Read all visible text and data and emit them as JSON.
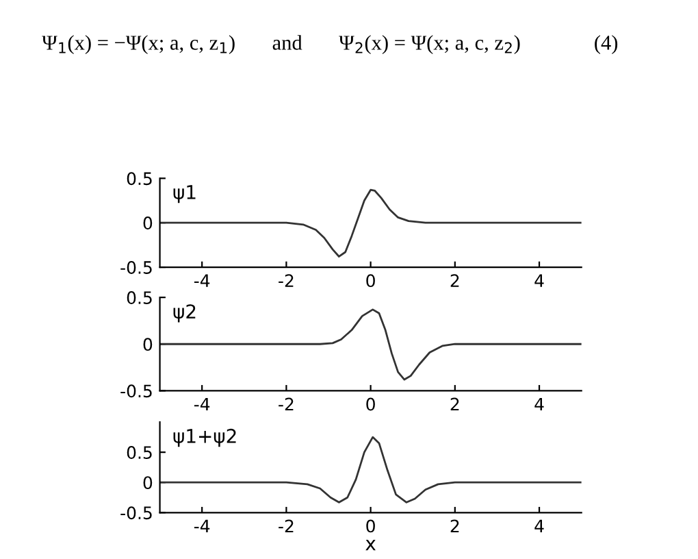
{
  "chart_data": [
    {
      "type": "line",
      "annotations": [
        "Ψ$_{1}$(x) = −Ψ(x; a, c, z$_{1}$)       and       Ψ$_{2}$(x) = Ψ(x; a, c, z$_{2}$)              (4)",
        "ψ1"
      ],
      "xlim": [
        -5,
        5
      ],
      "xticks": [
        -4,
        -2,
        0,
        2,
        4
      ],
      "ylim": [
        -0.5,
        0.5
      ],
      "yticks": [
        -0.5,
        0,
        0.5
      ],
      "grid": false,
      "series": [
        {
          "color": "#333333",
          "x": [
            -5,
            -2,
            -1.6,
            -1.3,
            -1.1,
            -0.9,
            -0.75,
            -0.6,
            -0.45,
            -0.3,
            -0.15,
            0,
            0.1,
            0.25,
            0.45,
            0.65,
            0.9,
            1.3,
            5
          ],
          "values": [
            0,
            0,
            -0.02,
            -0.08,
            -0.17,
            -0.3,
            -0.38,
            -0.33,
            -0.15,
            0.05,
            0.25,
            0.37,
            0.36,
            0.28,
            0.15,
            0.06,
            0.02,
            0,
            0
          ]
        }
      ]
    },
    {
      "type": "line",
      "annotations": [
        "ψ2"
      ],
      "xlim": [
        -5,
        5
      ],
      "xticks": [
        -4,
        -2,
        0,
        2,
        4
      ],
      "ylim": [
        -0.5,
        0.5
      ],
      "yticks": [
        -0.5,
        0,
        0.5
      ],
      "grid": false,
      "series": [
        {
          "color": "#333333",
          "x": [
            -5,
            -1.2,
            -0.9,
            -0.7,
            -0.45,
            -0.2,
            0.05,
            0.2,
            0.35,
            0.5,
            0.65,
            0.8,
            0.95,
            1.15,
            1.4,
            1.7,
            2,
            5
          ],
          "values": [
            0,
            0,
            0.01,
            0.05,
            0.15,
            0.3,
            0.37,
            0.33,
            0.15,
            -0.1,
            -0.3,
            -0.38,
            -0.34,
            -0.22,
            -0.09,
            -0.02,
            0,
            0
          ]
        }
      ]
    },
    {
      "type": "line",
      "annotations": [
        "ψ1+ψ2"
      ],
      "xlabel": "x",
      "xlim": [
        -5,
        5
      ],
      "xticks": [
        -4,
        -2,
        0,
        2,
        4
      ],
      "ylim": [
        -0.5,
        1
      ],
      "yticks": [
        -0.5,
        0,
        0.5
      ],
      "grid": false,
      "series": [
        {
          "color": "#333333",
          "x": [
            -5,
            -2,
            -1.5,
            -1.2,
            -0.95,
            -0.75,
            -0.55,
            -0.35,
            -0.15,
            0.05,
            0.2,
            0.4,
            0.6,
            0.85,
            1.05,
            1.3,
            1.6,
            2,
            5
          ],
          "values": [
            0,
            0,
            -0.03,
            -0.1,
            -0.25,
            -0.33,
            -0.25,
            0.05,
            0.5,
            0.75,
            0.65,
            0.2,
            -0.2,
            -0.33,
            -0.27,
            -0.12,
            -0.03,
            0,
            0
          ]
        }
      ]
    }
  ]
}
